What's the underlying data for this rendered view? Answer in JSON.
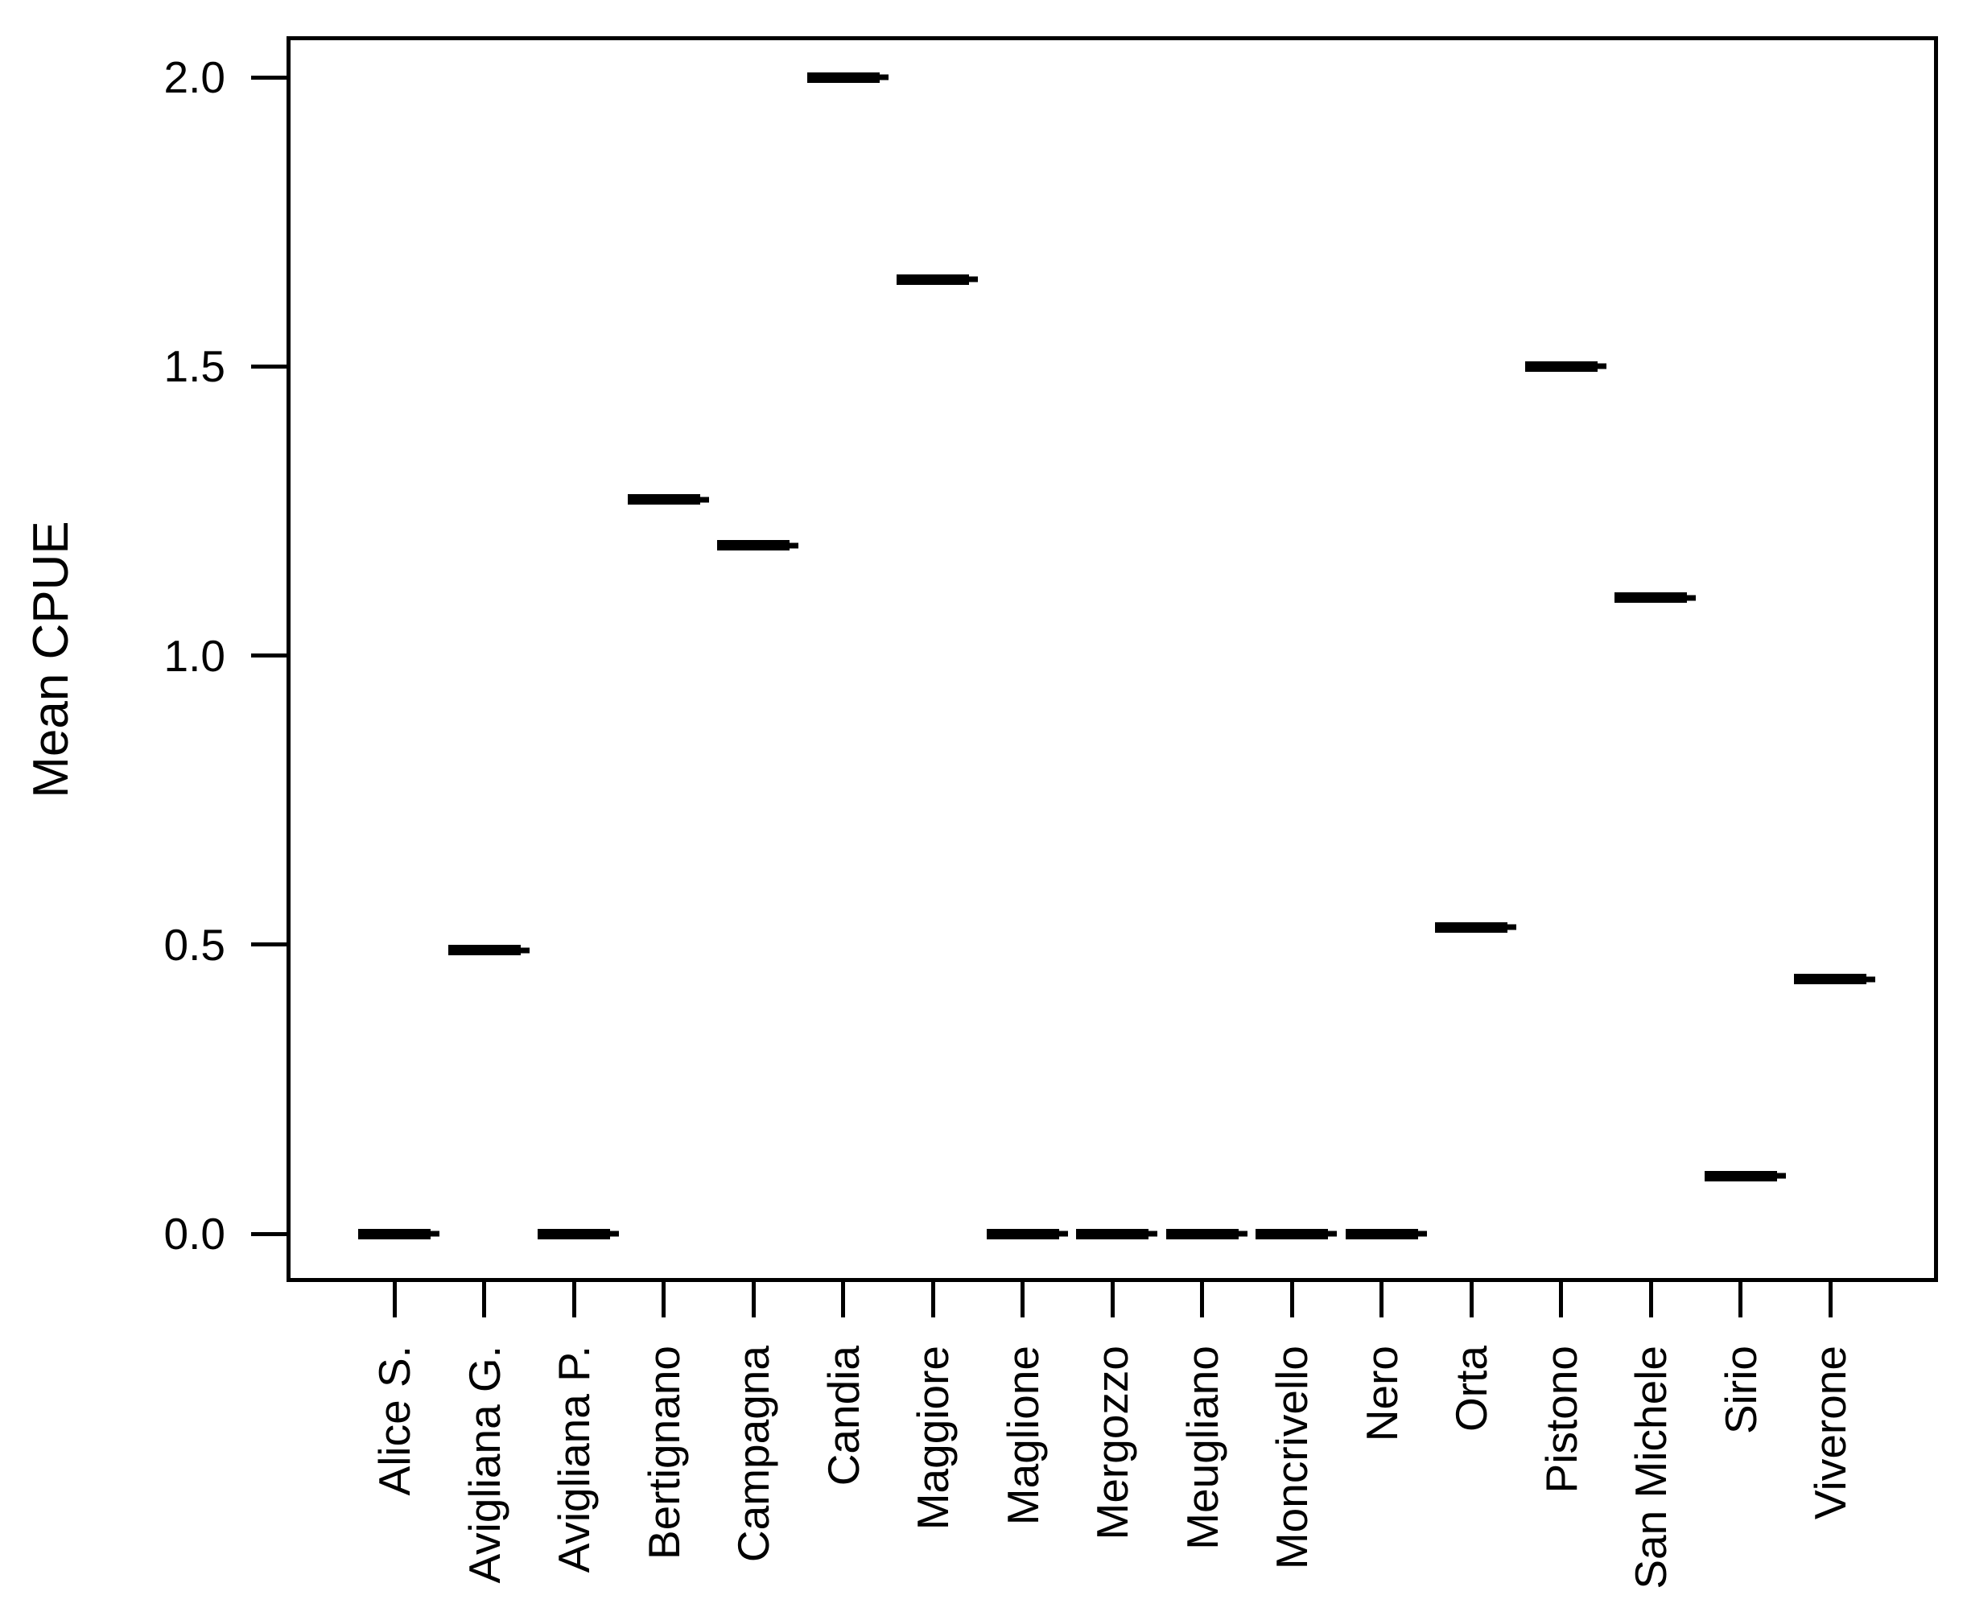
{
  "figure": {
    "background": "#ffffff",
    "ink_color": "#000000"
  },
  "chart_data": {
    "type": "bar",
    "render_style": "horizontal-median-segments",
    "title": "",
    "xlabel": "",
    "ylabel": "Mean CPUE",
    "categories": [
      "Alice S.",
      "Avigliana G.",
      "Avigliana P.",
      "Bertignano",
      "Campagna",
      "Candia",
      "Maggiore",
      "Maglione",
      "Mergozzo",
      "Meugliano",
      "Moncrivello",
      "Nero",
      "Orta",
      "Pistono",
      "San Michele",
      "Sirio",
      "Viverone"
    ],
    "values": [
      0.0,
      0.49,
      0.0,
      1.27,
      1.19,
      2.0,
      1.65,
      0.0,
      0.0,
      0.0,
      0.0,
      0.0,
      0.53,
      1.5,
      1.1,
      0.1,
      0.44
    ],
    "y_ticks": [
      0.0,
      0.5,
      1.0,
      1.5,
      2.0
    ],
    "y_tick_labels": [
      "0.0",
      "0.5",
      "1.0",
      "1.5",
      "2.0"
    ],
    "ylim": [
      -0.08,
      2.07
    ],
    "xlim_categories": 17,
    "grid": false,
    "legend": false
  }
}
